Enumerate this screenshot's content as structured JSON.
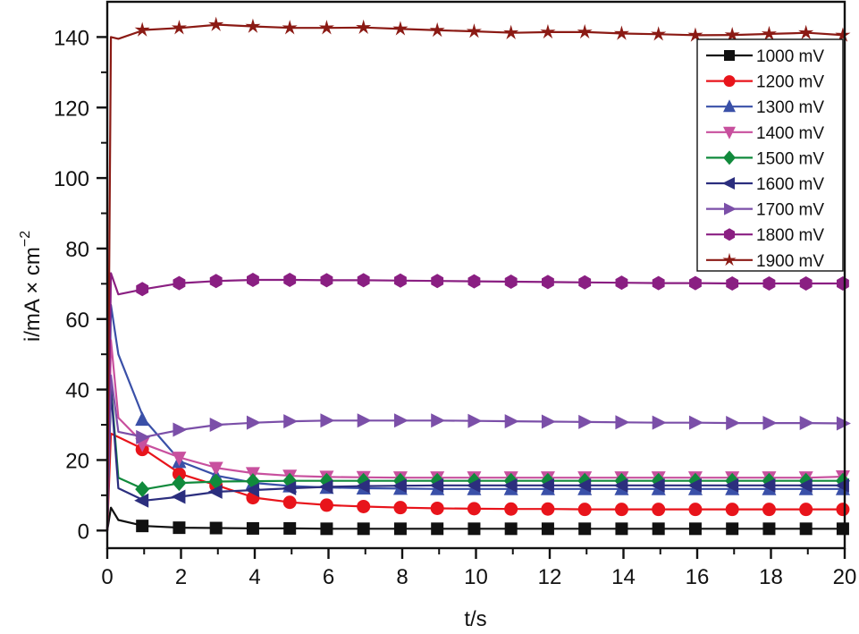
{
  "chart_data": {
    "type": "line",
    "title": "",
    "xlabel": "t/s",
    "ylabel": "i/mA × cm⁻²",
    "xlim": [
      0,
      20
    ],
    "ylim": [
      -5,
      150
    ],
    "x_ticks": [
      0,
      2,
      4,
      6,
      8,
      10,
      12,
      14,
      16,
      18,
      20
    ],
    "y_ticks": [
      0,
      20,
      40,
      60,
      80,
      100,
      120,
      140
    ],
    "grid": false,
    "legend_position": "upper right (inside)",
    "x": [
      0,
      0.1,
      0.3,
      1,
      2,
      3,
      4,
      5,
      6,
      7,
      8,
      9,
      10,
      11,
      12,
      13,
      14,
      15,
      16,
      17,
      18,
      19,
      20
    ],
    "marker_times": [
      1,
      2,
      3,
      4,
      5,
      6,
      7,
      8,
      9,
      10,
      11,
      12,
      13,
      14,
      15,
      16,
      17,
      18,
      19,
      20
    ],
    "series": [
      {
        "name": "1000 mV",
        "color": "#111111",
        "marker": "square",
        "values": [
          0,
          6.5,
          3,
          1.3,
          0.8,
          0.7,
          0.6,
          0.6,
          0.5,
          0.5,
          0.5,
          0.5,
          0.5,
          0.5,
          0.5,
          0.5,
          0.5,
          0.5,
          0.5,
          0.5,
          0.5,
          0.5,
          0.5
        ]
      },
      {
        "name": "1200 mV",
        "color": "#e8141b",
        "marker": "circle",
        "values": [
          0,
          27.5,
          26.5,
          23,
          16,
          12.7,
          9.3,
          8,
          7.2,
          6.8,
          6.5,
          6.3,
          6.2,
          6.1,
          6.1,
          6.0,
          6.0,
          6.0,
          6.0,
          6.0,
          6.0,
          6.0,
          6.0
        ]
      },
      {
        "name": "1300 mV",
        "color": "#3a50a8",
        "marker": "triangle-up",
        "values": [
          0,
          64,
          50,
          31.5,
          19.5,
          15.5,
          13.5,
          12.6,
          12.2,
          12.0,
          11.9,
          11.8,
          11.8,
          11.8,
          11.8,
          11.8,
          11.8,
          11.8,
          11.8,
          11.8,
          11.8,
          11.8,
          11.8
        ]
      },
      {
        "name": "1400 mV",
        "color": "#c8509e",
        "marker": "triangle-down",
        "values": [
          0,
          54,
          32,
          24.5,
          20.6,
          17.7,
          16.2,
          15.5,
          15.2,
          15.1,
          15.0,
          15.0,
          15.0,
          15.0,
          15.0,
          15.0,
          15.0,
          15.0,
          15.0,
          15.0,
          15.0,
          15.0,
          15.3
        ]
      },
      {
        "name": "1500 mV",
        "color": "#118a3c",
        "marker": "diamond",
        "values": [
          0,
          41,
          15,
          11.7,
          13.5,
          13.9,
          14.0,
          14.1,
          14.1,
          14.1,
          14.1,
          14.1,
          14.1,
          14.1,
          14.1,
          14.1,
          14.1,
          14.1,
          14.1,
          14.1,
          14.1,
          14.1,
          14.1
        ]
      },
      {
        "name": "1600 mV",
        "color": "#2b2e7e",
        "marker": "triangle-left",
        "values": [
          0,
          40,
          12,
          8.5,
          9.6,
          11.0,
          11.5,
          12.0,
          12.4,
          12.6,
          12.7,
          12.8,
          12.8,
          12.8,
          12.8,
          12.8,
          12.8,
          12.8,
          12.8,
          12.8,
          12.8,
          12.8,
          12.8
        ]
      },
      {
        "name": "1700 mV",
        "color": "#7b4fa8",
        "marker": "triangle-right",
        "values": [
          0,
          44,
          28,
          26.5,
          28.6,
          30.0,
          30.6,
          31.0,
          31.2,
          31.2,
          31.2,
          31.2,
          31.1,
          31.0,
          30.9,
          30.8,
          30.7,
          30.6,
          30.6,
          30.5,
          30.5,
          30.5,
          30.4
        ]
      },
      {
        "name": "1800 mV",
        "color": "#8a1f82",
        "marker": "hexagon",
        "values": [
          0,
          73,
          67,
          68.5,
          70.2,
          70.8,
          71.1,
          71.1,
          71.0,
          71.0,
          70.9,
          70.8,
          70.7,
          70.6,
          70.5,
          70.4,
          70.3,
          70.2,
          70.2,
          70.1,
          70.1,
          70.1,
          70.1
        ]
      },
      {
        "name": "1900 mV",
        "color": "#8b1a14",
        "marker": "star",
        "values": [
          0,
          140,
          139.5,
          142,
          142.6,
          143.5,
          143,
          142.6,
          142.6,
          142.7,
          142.3,
          141.9,
          141.6,
          141.2,
          141.4,
          141.4,
          141.0,
          140.8,
          140.5,
          140.6,
          140.9,
          141.2,
          140.5
        ]
      }
    ]
  },
  "axes": {
    "x_label": "t/s",
    "y_label_main": "i/mA × cm",
    "y_label_sup": "−2"
  },
  "legend": {
    "items": [
      "1000 mV",
      "1200 mV",
      "1300 mV",
      "1400 mV",
      "1500 mV",
      "1600 mV",
      "1700 mV",
      "1800 mV",
      "1900 mV"
    ]
  }
}
